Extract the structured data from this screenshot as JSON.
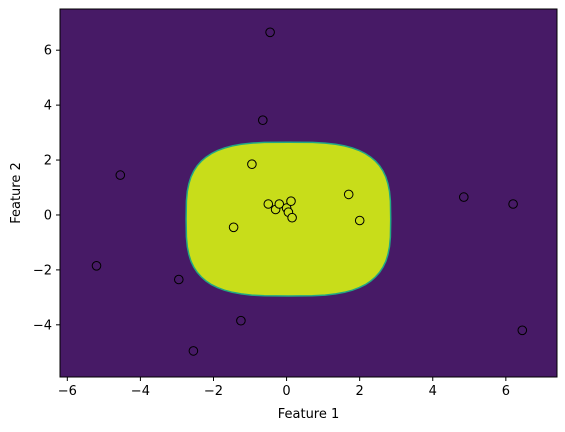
{
  "chart_data": {
    "type": "scatter",
    "title": "",
    "xlabel": "Feature 1",
    "ylabel": "Feature 2",
    "xlim": [
      -6.2,
      7.4
    ],
    "ylim": [
      -5.9,
      7.5
    ],
    "xticks": [
      -6,
      -4,
      -2,
      0,
      2,
      4,
      6
    ],
    "yticks": [
      -4,
      -2,
      0,
      2,
      4,
      6
    ],
    "grid": false,
    "legend": "none",
    "decision_region": {
      "shape": "octagon-like",
      "center": [
        0.05,
        -0.15
      ],
      "x_extent": [
        -2.65,
        2.95
      ],
      "y_extent": [
        -2.95,
        2.65
      ],
      "inside_class": 1,
      "outside_class": 0
    },
    "colors": {
      "class_0": "#471a66",
      "class_1": "#c8dd1a",
      "boundary": "#22a884",
      "point_edge": "#000000"
    },
    "points": [
      {
        "x": -0.45,
        "y": 6.65,
        "class": 0
      },
      {
        "x": -0.65,
        "y": 3.45,
        "class": 0
      },
      {
        "x": -4.55,
        "y": 1.45,
        "class": 0
      },
      {
        "x": -5.2,
        "y": -1.85,
        "class": 0
      },
      {
        "x": -2.95,
        "y": -2.35,
        "class": 0
      },
      {
        "x": -1.25,
        "y": -3.85,
        "class": 0
      },
      {
        "x": -2.55,
        "y": -4.95,
        "class": 0
      },
      {
        "x": 4.85,
        "y": 0.65,
        "class": 0
      },
      {
        "x": 6.2,
        "y": 0.4,
        "class": 0
      },
      {
        "x": 6.45,
        "y": -4.2,
        "class": 0
      },
      {
        "x": -0.95,
        "y": 1.85,
        "class": 1
      },
      {
        "x": 1.7,
        "y": 0.75,
        "class": 1
      },
      {
        "x": 2.0,
        "y": -0.2,
        "class": 1
      },
      {
        "x": -1.45,
        "y": -0.45,
        "class": 1
      },
      {
        "x": -0.5,
        "y": 0.4,
        "class": 1
      },
      {
        "x": -0.3,
        "y": 0.2,
        "class": 1
      },
      {
        "x": -0.2,
        "y": 0.4,
        "class": 1
      },
      {
        "x": 0.0,
        "y": 0.25,
        "class": 1
      },
      {
        "x": 0.12,
        "y": 0.5,
        "class": 1
      },
      {
        "x": 0.05,
        "y": 0.1,
        "class": 1
      },
      {
        "x": 0.15,
        "y": -0.1,
        "class": 1
      }
    ]
  }
}
